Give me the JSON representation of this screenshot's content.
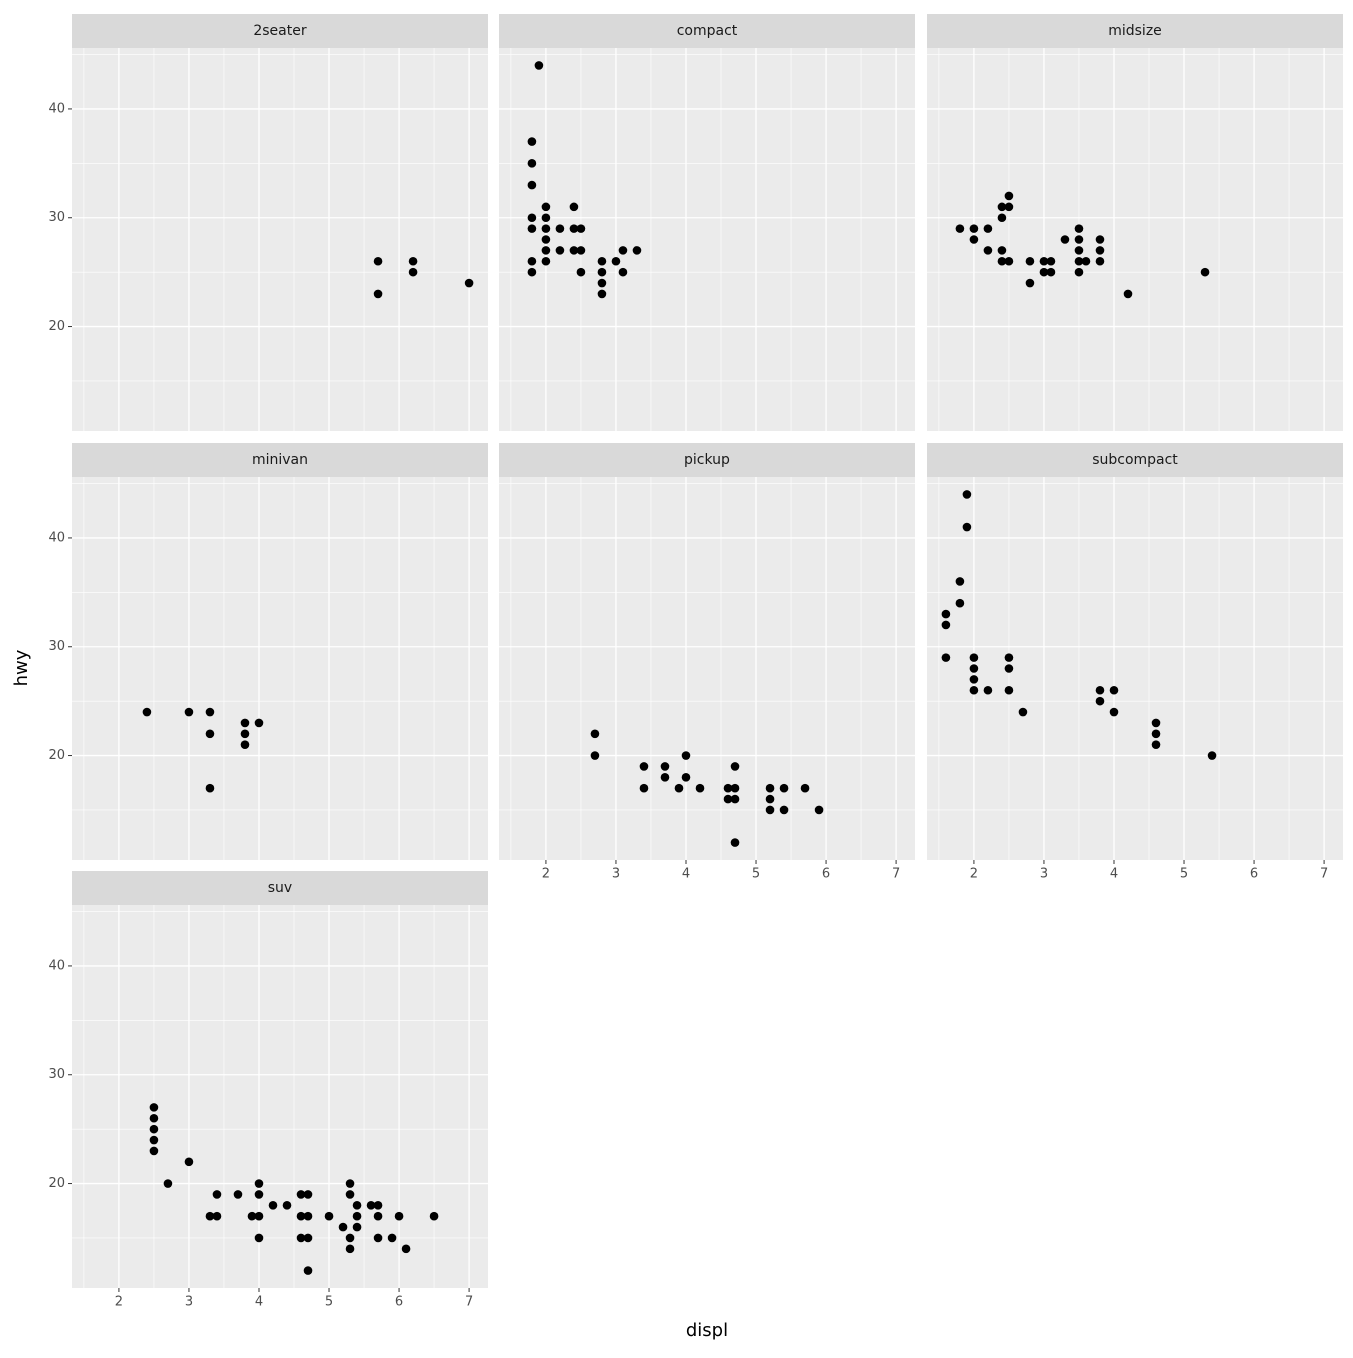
{
  "x_label": "displ",
  "y_label": "hwy",
  "chart_data": [
    {
      "type": "scatter",
      "title": "2seater",
      "color": "#000000",
      "grid": true,
      "xlim": [
        1.33,
        7.27
      ],
      "ylim": [
        10.4,
        45.6
      ],
      "xticks": [
        2,
        3,
        4,
        5,
        6,
        7
      ],
      "yticks": [
        20,
        30,
        40
      ],
      "minor_xticks": [
        1.5,
        2.5,
        3.5,
        4.5,
        5.5,
        6.5
      ],
      "minor_yticks": [
        15,
        25,
        35,
        45
      ],
      "x": [
        5.7,
        5.7,
        6.2,
        6.2,
        7.0
      ],
      "values": [
        26,
        23,
        26,
        25,
        24
      ]
    },
    {
      "type": "scatter",
      "title": "compact",
      "color": "#000000",
      "grid": true,
      "xlim": [
        1.33,
        7.27
      ],
      "ylim": [
        10.4,
        45.6
      ],
      "xticks": [
        2,
        3,
        4,
        5,
        6,
        7
      ],
      "yticks": [
        20,
        30,
        40
      ],
      "minor_xticks": [
        1.5,
        2.5,
        3.5,
        4.5,
        5.5,
        6.5
      ],
      "minor_yticks": [
        15,
        25,
        35,
        45
      ],
      "x": [
        1.8,
        1.8,
        1.8,
        1.8,
        1.8,
        1.8,
        1.8,
        1.9,
        2.0,
        2.0,
        2.0,
        2.0,
        2.0,
        2.0,
        2.2,
        2.2,
        2.4,
        2.4,
        2.4,
        2.5,
        2.5,
        2.5,
        2.8,
        2.8,
        2.8,
        2.8,
        3.0,
        3.1,
        3.1,
        3.3
      ],
      "values": [
        37,
        35,
        33,
        30,
        29,
        26,
        25,
        44,
        31,
        30,
        29,
        28,
        27,
        26,
        29,
        27,
        31,
        29,
        27,
        29,
        27,
        25,
        26,
        25,
        24,
        23,
        26,
        27,
        25,
        27
      ]
    },
    {
      "type": "scatter",
      "title": "midsize",
      "color": "#000000",
      "grid": true,
      "xlim": [
        1.33,
        7.27
      ],
      "ylim": [
        10.4,
        45.6
      ],
      "xticks": [
        2,
        3,
        4,
        5,
        6,
        7
      ],
      "yticks": [
        20,
        30,
        40
      ],
      "minor_xticks": [
        1.5,
        2.5,
        3.5,
        4.5,
        5.5,
        6.5
      ],
      "minor_yticks": [
        15,
        25,
        35,
        45
      ],
      "x": [
        1.8,
        2.0,
        2.0,
        2.2,
        2.2,
        2.4,
        2.4,
        2.4,
        2.4,
        2.5,
        2.5,
        2.5,
        2.8,
        2.8,
        3.0,
        3.0,
        3.1,
        3.1,
        3.3,
        3.5,
        3.5,
        3.5,
        3.5,
        3.5,
        3.6,
        3.8,
        3.8,
        3.8,
        4.2,
        5.3
      ],
      "values": [
        29,
        29,
        28,
        29,
        27,
        31,
        30,
        27,
        26,
        32,
        31,
        26,
        26,
        24,
        26,
        25,
        26,
        25,
        28,
        29,
        28,
        27,
        26,
        25,
        26,
        28,
        27,
        26,
        23,
        25
      ]
    },
    {
      "type": "scatter",
      "title": "minivan",
      "color": "#000000",
      "grid": true,
      "xlim": [
        1.33,
        7.27
      ],
      "ylim": [
        10.4,
        45.6
      ],
      "xticks": [
        2,
        3,
        4,
        5,
        6,
        7
      ],
      "yticks": [
        20,
        30,
        40
      ],
      "minor_xticks": [
        1.5,
        2.5,
        3.5,
        4.5,
        5.5,
        6.5
      ],
      "minor_yticks": [
        15,
        25,
        35,
        45
      ],
      "x": [
        2.4,
        3.0,
        3.3,
        3.3,
        3.3,
        3.8,
        3.8,
        3.8,
        4.0
      ],
      "values": [
        24,
        24,
        24,
        22,
        17,
        23,
        22,
        21,
        23
      ]
    },
    {
      "type": "scatter",
      "title": "pickup",
      "color": "#000000",
      "grid": true,
      "xlim": [
        1.33,
        7.27
      ],
      "ylim": [
        10.4,
        45.6
      ],
      "xticks": [
        2,
        3,
        4,
        5,
        6,
        7
      ],
      "yticks": [
        20,
        30,
        40
      ],
      "minor_xticks": [
        1.5,
        2.5,
        3.5,
        4.5,
        5.5,
        6.5
      ],
      "minor_yticks": [
        15,
        25,
        35,
        45
      ],
      "x": [
        2.7,
        2.7,
        3.4,
        3.4,
        3.7,
        3.7,
        3.9,
        4.0,
        4.0,
        4.2,
        4.6,
        4.6,
        4.7,
        4.7,
        4.7,
        4.7,
        5.2,
        5.2,
        5.2,
        5.4,
        5.4,
        5.7,
        5.9
      ],
      "values": [
        22,
        20,
        19,
        17,
        19,
        18,
        17,
        20,
        18,
        17,
        17,
        16,
        19,
        17,
        16,
        12,
        17,
        16,
        15,
        17,
        15,
        17,
        15
      ]
    },
    {
      "type": "scatter",
      "title": "subcompact",
      "color": "#000000",
      "grid": true,
      "xlim": [
        1.33,
        7.27
      ],
      "ylim": [
        10.4,
        45.6
      ],
      "xticks": [
        2,
        3,
        4,
        5,
        6,
        7
      ],
      "yticks": [
        20,
        30,
        40
      ],
      "minor_xticks": [
        1.5,
        2.5,
        3.5,
        4.5,
        5.5,
        6.5
      ],
      "minor_yticks": [
        15,
        25,
        35,
        45
      ],
      "x": [
        1.6,
        1.6,
        1.6,
        1.8,
        1.8,
        1.9,
        1.9,
        2.0,
        2.0,
        2.0,
        2.0,
        2.2,
        2.5,
        2.5,
        2.5,
        2.7,
        3.8,
        3.8,
        4.0,
        4.0,
        4.6,
        4.6,
        4.6,
        5.4
      ],
      "values": [
        33,
        32,
        29,
        36,
        34,
        44,
        41,
        29,
        28,
        27,
        26,
        26,
        29,
        28,
        26,
        24,
        26,
        25,
        26,
        24,
        23,
        22,
        21,
        20
      ]
    },
    {
      "type": "scatter",
      "title": "suv",
      "color": "#000000",
      "grid": true,
      "xlim": [
        1.33,
        7.27
      ],
      "ylim": [
        10.4,
        45.6
      ],
      "xticks": [
        2,
        3,
        4,
        5,
        6,
        7
      ],
      "yticks": [
        20,
        30,
        40
      ],
      "minor_xticks": [
        1.5,
        2.5,
        3.5,
        4.5,
        5.5,
        6.5
      ],
      "minor_yticks": [
        15,
        25,
        35,
        45
      ],
      "x": [
        2.5,
        2.5,
        2.5,
        2.5,
        2.5,
        2.7,
        3.0,
        3.3,
        3.4,
        3.4,
        3.7,
        3.9,
        4.0,
        4.0,
        4.0,
        4.0,
        4.2,
        4.4,
        4.6,
        4.6,
        4.6,
        4.7,
        4.7,
        4.7,
        4.7,
        5.0,
        5.2,
        5.3,
        5.3,
        5.3,
        5.3,
        5.4,
        5.4,
        5.4,
        5.6,
        5.7,
        5.7,
        5.7,
        5.9,
        6.0,
        6.1,
        6.5
      ],
      "values": [
        27,
        26,
        25,
        24,
        23,
        20,
        22,
        17,
        19,
        17,
        19,
        17,
        20,
        19,
        17,
        15,
        18,
        18,
        19,
        17,
        15,
        19,
        17,
        15,
        12,
        17,
        16,
        20,
        19,
        15,
        14,
        18,
        17,
        16,
        18,
        18,
        17,
        15,
        15,
        17,
        14,
        17
      ]
    }
  ]
}
